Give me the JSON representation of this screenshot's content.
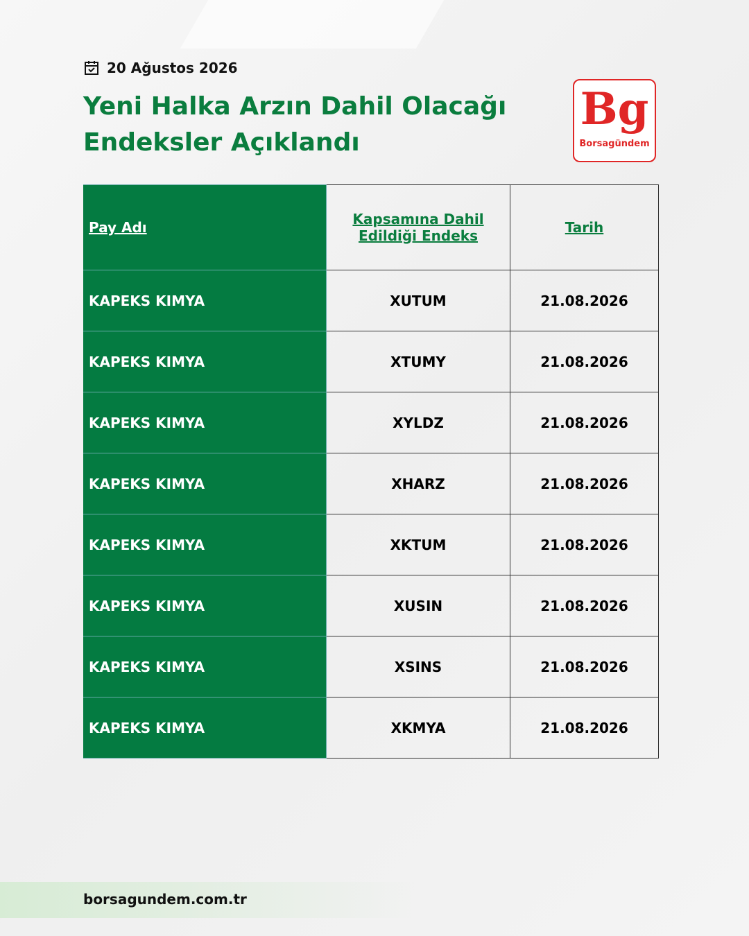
{
  "header": {
    "date": "20 Ağustos 2026",
    "title_line1": "Yeni Halka Arzın Dahil Olacağı",
    "title_line2": "Endeksler Açıklandı",
    "logo_mark": "Bg",
    "logo_text": "Borsagündem"
  },
  "table": {
    "columns": [
      "Pay Adı",
      "Kapsamına Dahil Edildiği Endeks",
      "Tarih"
    ],
    "rows": [
      [
        "KAPEKS KIMYA",
        "XUTUM",
        "21.08.2026"
      ],
      [
        "KAPEKS KIMYA",
        "XTUMY",
        "21.08.2026"
      ],
      [
        "KAPEKS KIMYA",
        "XYLDZ",
        "21.08.2026"
      ],
      [
        "KAPEKS KIMYA",
        "XHARZ",
        "21.08.2026"
      ],
      [
        "KAPEKS KIMYA",
        "XKTUM",
        "21.08.2026"
      ],
      [
        "KAPEKS KIMYA",
        "XUSIN",
        "21.08.2026"
      ],
      [
        "KAPEKS KIMYA",
        "XSINS",
        "21.08.2026"
      ],
      [
        "KAPEKS KIMYA",
        "XKMYA",
        "21.08.2026"
      ]
    ]
  },
  "footer": {
    "website": "borsagundem.com.tr"
  }
}
